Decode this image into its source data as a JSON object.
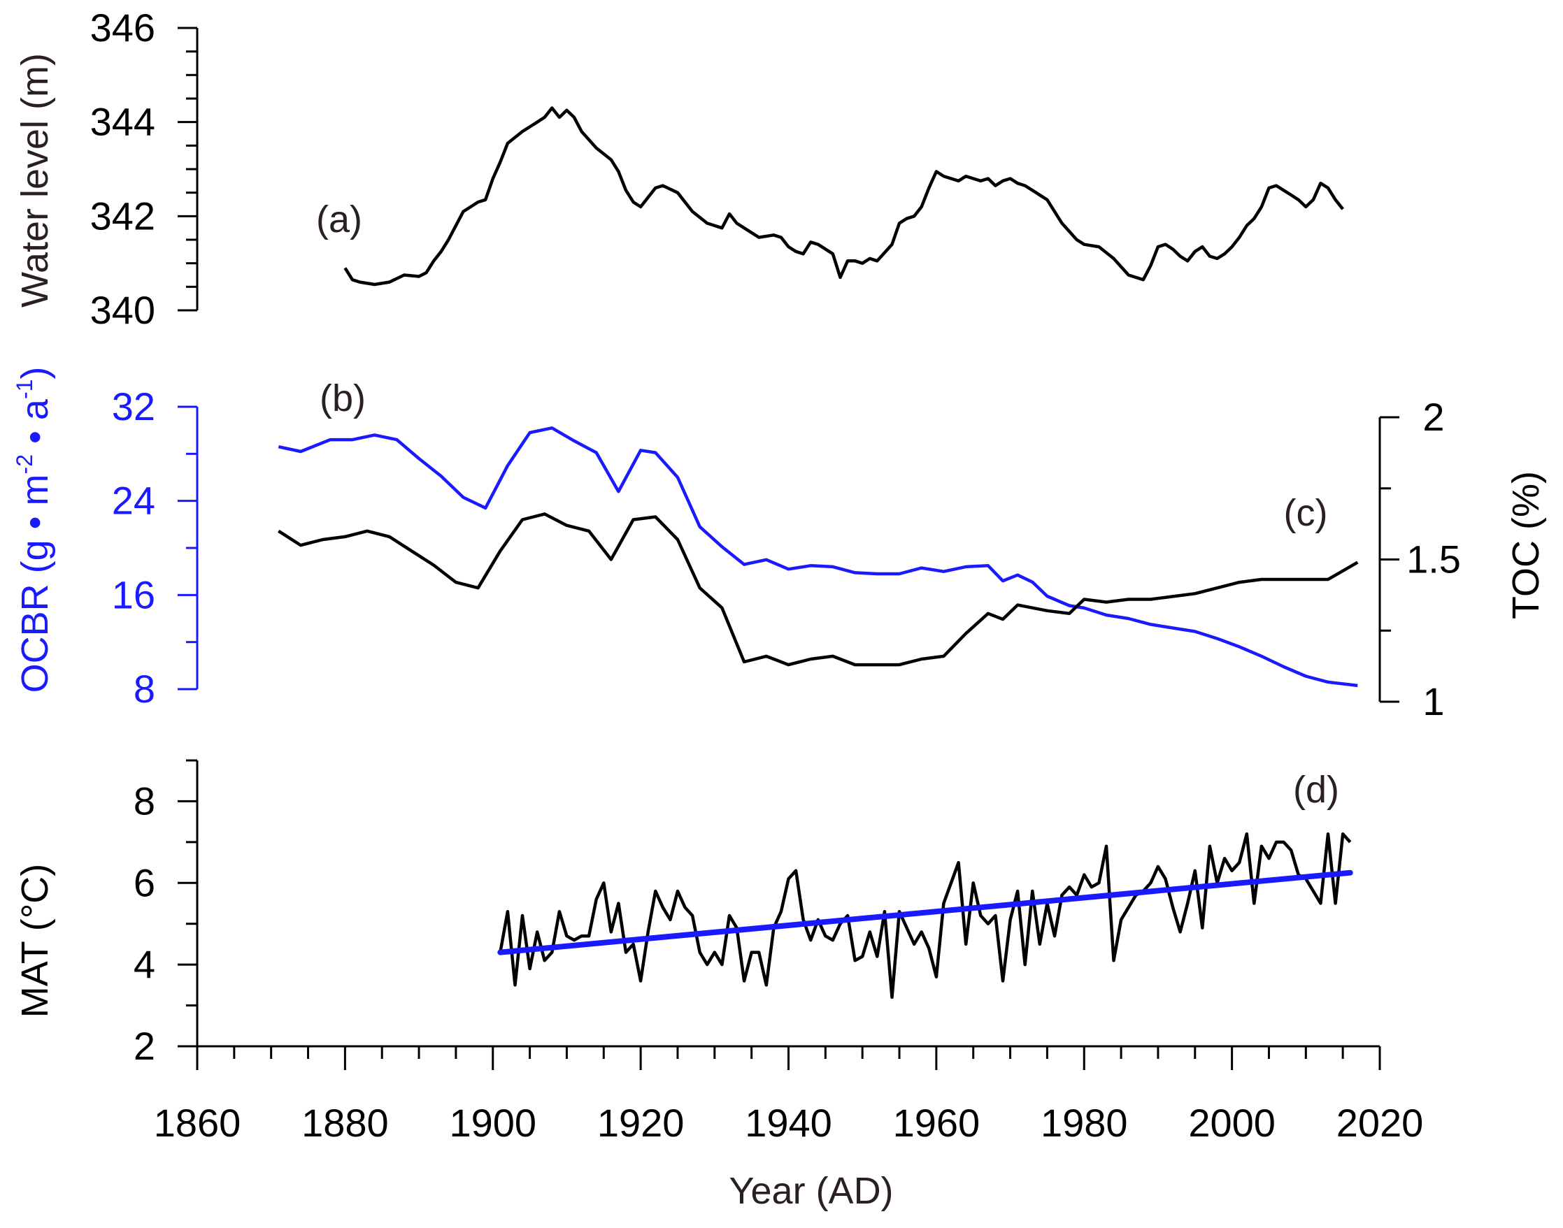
{
  "chart_data": [
    {
      "id": "panel_a",
      "type": "line",
      "panel_label": "(a)",
      "ylabel": "Water level (m)",
      "ylim": [
        340,
        346
      ],
      "yticks": [
        340,
        342,
        344,
        346
      ],
      "xlim": [
        1860,
        2020
      ],
      "series": [
        {
          "name": "Water level",
          "color": "#000000",
          "x": [
            1880,
            1881,
            1882,
            1884,
            1886,
            1888,
            1890,
            1891,
            1892,
            1893,
            1894,
            1896,
            1898,
            1899,
            1900,
            1901,
            1902,
            1904,
            1906,
            1907,
            1908,
            1909,
            1910,
            1911,
            1912,
            1914,
            1916,
            1917,
            1918,
            1919,
            1920,
            1922,
            1923,
            1925,
            1927,
            1929,
            1931,
            1932,
            1933,
            1934,
            1936,
            1938,
            1939,
            1940,
            1941,
            1942,
            1943,
            1944,
            1946,
            1947,
            1948,
            1949,
            1950,
            1951,
            1952,
            1954,
            1955,
            1956,
            1957,
            1958,
            1959,
            1960,
            1961,
            1963,
            1964,
            1965,
            1966,
            1967,
            1968,
            1969,
            1970,
            1971,
            1972,
            1973,
            1975,
            1977,
            1979,
            1980,
            1982,
            1984,
            1986,
            1987,
            1988,
            1989,
            1990,
            1991,
            1992,
            1993,
            1994,
            1995,
            1996,
            1997,
            1998,
            1999,
            2000,
            2001,
            2002,
            2003,
            2004,
            2005,
            2006,
            2007,
            2008,
            2009,
            2010,
            2011,
            2012,
            2013,
            2014,
            2015
          ],
          "values": [
            340.9,
            340.65,
            340.6,
            340.55,
            340.6,
            340.75,
            340.72,
            340.8,
            341.05,
            341.25,
            341.5,
            342.1,
            342.3,
            342.35,
            342.8,
            343.15,
            343.55,
            343.8,
            344.0,
            344.1,
            344.3,
            344.1,
            344.25,
            344.1,
            343.8,
            343.45,
            343.2,
            342.95,
            342.55,
            342.3,
            342.2,
            342.6,
            342.65,
            342.5,
            342.1,
            341.85,
            341.75,
            342.05,
            341.85,
            341.75,
            341.55,
            341.6,
            341.55,
            341.35,
            341.25,
            341.2,
            341.45,
            341.4,
            341.2,
            340.7,
            341.05,
            341.05,
            341.0,
            341.1,
            341.05,
            341.4,
            341.85,
            341.95,
            342.0,
            342.2,
            342.6,
            342.95,
            342.85,
            342.75,
            342.85,
            342.8,
            342.75,
            342.8,
            342.65,
            342.75,
            342.8,
            342.7,
            342.65,
            342.55,
            342.35,
            341.85,
            341.5,
            341.4,
            341.35,
            341.1,
            340.75,
            340.7,
            340.65,
            340.95,
            341.35,
            341.4,
            341.3,
            341.15,
            341.05,
            341.25,
            341.35,
            341.15,
            341.1,
            341.2,
            341.35,
            341.55,
            341.8,
            341.95,
            342.2,
            342.6,
            342.65,
            342.55,
            342.45,
            342.35,
            342.2,
            342.35,
            342.7,
            342.6,
            342.35,
            342.15
          ]
        }
      ]
    },
    {
      "id": "panel_bc",
      "type": "line",
      "panel_labels": [
        "(b)",
        "(c)"
      ],
      "ylabel_left": "OCBR (g • m",
      "ylabel_left_sup1": "-2",
      "ylabel_left_mid": " • a",
      "ylabel_left_sup2": "-1",
      "ylabel_left_end": ")",
      "ylim_left": [
        8,
        32
      ],
      "yticks_left": [
        8,
        16,
        24,
        32
      ],
      "ylabel_right": "TOC (%)",
      "ylim_right": [
        1,
        2
      ],
      "yticks_right": [
        1,
        1.5,
        2
      ],
      "yticklabels_right": [
        "1",
        "1.5",
        "2"
      ],
      "xlim": [
        1860,
        2020
      ],
      "series": [
        {
          "name": "OCBR",
          "axis": "left",
          "color": "#1a1aff",
          "x": [
            1871,
            1874,
            1878,
            1881,
            1884,
            1887,
            1890,
            1893,
            1896,
            1899,
            1902,
            1905,
            1908,
            1911,
            1914,
            1917,
            1920,
            1922,
            1925,
            1928,
            1931,
            1934,
            1937,
            1940,
            1943,
            1946,
            1949,
            1952,
            1955,
            1958,
            1961,
            1964,
            1967,
            1969,
            1971,
            1973,
            1975,
            1978,
            1980,
            1983,
            1986,
            1989,
            1992,
            1995,
            1998,
            2001,
            2004,
            2007,
            2010,
            2013,
            2017
          ],
          "values": [
            28.6,
            28.2,
            29.2,
            29.2,
            29.6,
            29.2,
            27.6,
            26.1,
            24.3,
            23.4,
            27.0,
            29.8,
            30.2,
            29.1,
            28.1,
            24.8,
            28.3,
            28.1,
            26.0,
            21.8,
            20.1,
            18.6,
            19.0,
            18.2,
            18.5,
            18.4,
            17.9,
            17.8,
            17.8,
            18.3,
            18.0,
            18.4,
            18.5,
            17.2,
            17.7,
            17.1,
            15.9,
            15.1,
            14.9,
            14.3,
            14.0,
            13.5,
            13.2,
            12.9,
            12.3,
            11.6,
            10.8,
            9.9,
            9.1,
            8.6,
            8.3
          ]
        },
        {
          "name": "TOC",
          "axis": "right",
          "color": "#000000",
          "x": [
            1871,
            1874,
            1877,
            1880,
            1883,
            1886,
            1889,
            1892,
            1895,
            1898,
            1901,
            1904,
            1907,
            1910,
            1913,
            1916,
            1919,
            1922,
            1925,
            1928,
            1931,
            1934,
            1937,
            1940,
            1943,
            1946,
            1949,
            1952,
            1955,
            1958,
            1961,
            1964,
            1967,
            1969,
            1971,
            1973,
            1975,
            1978,
            1980,
            1983,
            1986,
            1989,
            1992,
            1995,
            1998,
            2001,
            2004,
            2007,
            2010,
            2013,
            2017
          ],
          "values": [
            1.6,
            1.55,
            1.57,
            1.58,
            1.6,
            1.58,
            1.53,
            1.48,
            1.42,
            1.4,
            1.53,
            1.64,
            1.66,
            1.62,
            1.6,
            1.5,
            1.64,
            1.65,
            1.57,
            1.4,
            1.33,
            1.14,
            1.16,
            1.13,
            1.15,
            1.16,
            1.13,
            1.13,
            1.13,
            1.15,
            1.16,
            1.24,
            1.31,
            1.29,
            1.34,
            1.33,
            1.32,
            1.31,
            1.36,
            1.35,
            1.36,
            1.36,
            1.37,
            1.38,
            1.4,
            1.42,
            1.43,
            1.43,
            1.43,
            1.43,
            1.49
          ]
        }
      ]
    },
    {
      "id": "panel_d",
      "type": "line",
      "panel_label": "(d)",
      "ylabel": "MAT (°C)",
      "ylim": [
        2,
        9
      ],
      "yticks": [
        2,
        4,
        6,
        8
      ],
      "xlim": [
        1860,
        2020
      ],
      "xlabel": "Year (AD)",
      "xticks": [
        1860,
        1880,
        1900,
        1920,
        1940,
        1960,
        1980,
        2000,
        2020
      ],
      "series": [
        {
          "name": "MAT",
          "color": "#000000",
          "x": [
            1901,
            1902,
            1903,
            1904,
            1905,
            1906,
            1907,
            1908,
            1909,
            1910,
            1911,
            1912,
            1913,
            1914,
            1915,
            1916,
            1917,
            1918,
            1919,
            1920,
            1921,
            1922,
            1923,
            1924,
            1925,
            1926,
            1927,
            1928,
            1929,
            1930,
            1931,
            1932,
            1933,
            1934,
            1935,
            1936,
            1937,
            1938,
            1939,
            1940,
            1941,
            1942,
            1943,
            1944,
            1945,
            1946,
            1947,
            1948,
            1949,
            1950,
            1951,
            1952,
            1953,
            1954,
            1955,
            1956,
            1957,
            1958,
            1959,
            1960,
            1961,
            1962,
            1963,
            1964,
            1965,
            1966,
            1967,
            1968,
            1969,
            1970,
            1971,
            1972,
            1973,
            1974,
            1975,
            1976,
            1977,
            1978,
            1979,
            1980,
            1981,
            1982,
            1983,
            1984,
            1985,
            1986,
            1987,
            1988,
            1989,
            1990,
            1991,
            1992,
            1993,
            1994,
            1995,
            1996,
            1997,
            1998,
            1999,
            2000,
            2001,
            2002,
            2003,
            2004,
            2005,
            2006,
            2007,
            2008,
            2009,
            2010,
            2011,
            2012,
            2013,
            2014,
            2015,
            2016
          ],
          "values": [
            4.3,
            5.3,
            3.5,
            5.2,
            3.9,
            4.8,
            4.1,
            4.3,
            5.3,
            4.7,
            4.6,
            4.7,
            4.7,
            5.6,
            6.0,
            4.8,
            5.5,
            4.3,
            4.5,
            3.6,
            4.8,
            5.8,
            5.4,
            5.1,
            5.8,
            5.4,
            5.2,
            4.3,
            4.0,
            4.3,
            4.0,
            5.2,
            4.9,
            3.6,
            4.3,
            4.3,
            3.5,
            4.9,
            5.3,
            6.1,
            6.3,
            5.1,
            4.6,
            5.1,
            4.7,
            4.6,
            5.0,
            5.2,
            4.1,
            4.2,
            4.8,
            4.2,
            5.3,
            3.2,
            5.3,
            4.9,
            4.5,
            4.8,
            4.4,
            3.7,
            5.5,
            6.0,
            6.5,
            4.5,
            6.0,
            5.2,
            5.0,
            5.2,
            3.6,
            5.1,
            5.8,
            4.0,
            5.8,
            4.5,
            5.5,
            4.7,
            5.7,
            5.9,
            5.7,
            6.2,
            5.9,
            6.0,
            6.9,
            4.1,
            5.1,
            5.4,
            5.7,
            5.8,
            6.0,
            6.4,
            6.1,
            5.4,
            4.8,
            5.5,
            6.3,
            4.9,
            6.9,
            6.0,
            6.6,
            6.3,
            6.5,
            7.2,
            5.5,
            6.9,
            6.6,
            7.0,
            7.0,
            6.8,
            6.2,
            6.1,
            5.8,
            5.5,
            7.2,
            5.5,
            7.2,
            7.0
          ]
        },
        {
          "name": "MAT linear trend",
          "color": "#1a1aff",
          "x": [
            1901,
            2016
          ],
          "values": [
            4.3,
            6.25
          ]
        }
      ]
    }
  ]
}
